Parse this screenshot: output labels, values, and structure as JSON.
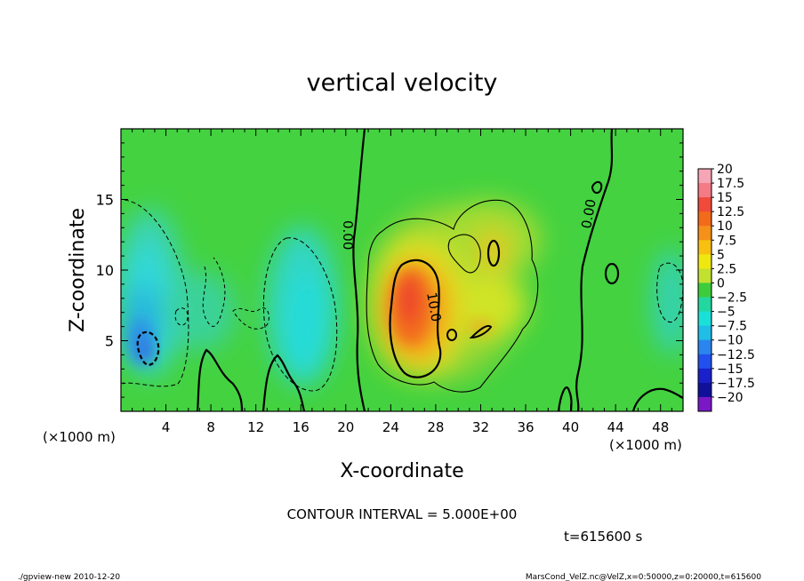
{
  "chart_data": {
    "type": "heatmap",
    "title": "vertical velocity",
    "xlabel": "X-coordinate",
    "ylabel": "Z-coordinate",
    "x_unit": "(×1000 m)",
    "y_unit": "(×1000 m)",
    "xlim": [
      0,
      50
    ],
    "ylim": [
      0,
      20
    ],
    "x_ticks": [
      4,
      8,
      12,
      16,
      20,
      24,
      28,
      32,
      36,
      40,
      44,
      48
    ],
    "y_ticks": [
      5,
      10,
      15
    ],
    "colorbar": {
      "levels": [
        20,
        17.5,
        15,
        12.5,
        10,
        7.5,
        5,
        2.5,
        0,
        -2.5,
        -5,
        -7.5,
        -10,
        -12.5,
        -15,
        -17.5,
        -20
      ],
      "labels": [
        "20",
        "17.5",
        "15",
        "12.5",
        "10",
        "7.5",
        "5",
        "2.5",
        "0",
        "−2.5",
        "−5",
        "−7.5",
        "−10",
        "−12.5",
        "−15",
        "−17.5",
        "−20"
      ],
      "colors": [
        "#f5a5b4",
        "#f47a86",
        "#f04a3a",
        "#f26a1a",
        "#f5901a",
        "#f8c010",
        "#eee810",
        "#c2e030",
        "#3ccc3c",
        "#22d7a0",
        "#1ae0d8",
        "#20bde6",
        "#2a86ee",
        "#2250ee",
        "#1a20ca",
        "#10109a",
        "#7a18c8"
      ]
    },
    "contour_labels": [
      "0.00",
      "10.0",
      "0.00"
    ],
    "features": [
      {
        "sign": "positive",
        "x_center": 26.5,
        "z_center": 8.5,
        "peak": 15
      },
      {
        "sign": "negative",
        "x_center": 3,
        "z_center": 6,
        "peak": -10
      },
      {
        "sign": "negative",
        "x_center": 16.5,
        "z_center": 7,
        "peak": -7.5
      },
      {
        "sign": "negative",
        "x_center": 48.5,
        "z_center": 7.5,
        "peak": -5
      }
    ]
  },
  "annotations": {
    "contour_interval": "CONTOUR INTERVAL = 5.000E+00",
    "time": "t=615600 s",
    "footer_left": "./gpview-new  2010-12-20",
    "footer_right": "MarsCond_VelZ.nc@VelZ,x=0:50000,z=0:20000,t=615600"
  }
}
